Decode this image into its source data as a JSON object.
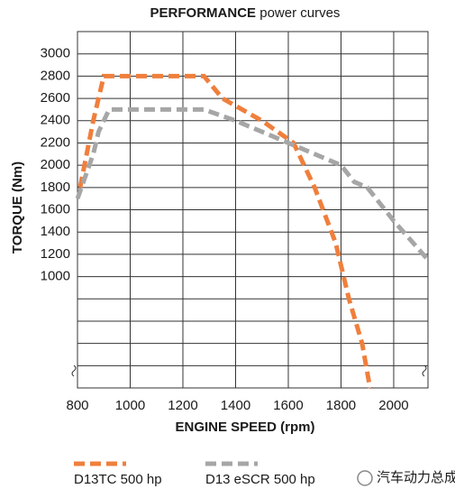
{
  "chart_data": {
    "type": "line",
    "title": "PERFORMANCE",
    "subtitle": "power curves",
    "x_label": "ENGINE SPEED (rpm)",
    "y_label": "TORQUE (Nm)",
    "xlim": [
      800,
      2130
    ],
    "ylim": [
      0,
      3200
    ],
    "xticks": [
      800,
      1000,
      1200,
      1400,
      1600,
      1800,
      2000
    ],
    "yticks": [
      1000,
      1200,
      1400,
      1600,
      1800,
      2000,
      2200,
      2400,
      2600,
      2800,
      3000
    ],
    "ygrid": [
      200,
      400,
      600,
      800
    ],
    "grid": true,
    "series": [
      {
        "name": "D13TC 500 hp",
        "color": "#f07f3c",
        "x": [
          810,
          860,
          900,
          1280,
          1350,
          1500,
          1620,
          1700,
          1780,
          1830,
          1880,
          1910
        ],
        "values": [
          1800,
          2400,
          2800,
          2800,
          2600,
          2400,
          2200,
          1800,
          1300,
          800,
          400,
          0
        ]
      },
      {
        "name": "D13 eSCR 500 hp",
        "color": "#a6a6a6",
        "x": [
          800,
          860,
          880,
          920,
          1280,
          1400,
          1600,
          1800,
          1850,
          1900,
          2000,
          2130
        ],
        "values": [
          1700,
          2100,
          2300,
          2500,
          2500,
          2400,
          2200,
          2000,
          1850,
          1800,
          1500,
          1150
        ]
      }
    ],
    "watermark": "汽车动力总成"
  }
}
